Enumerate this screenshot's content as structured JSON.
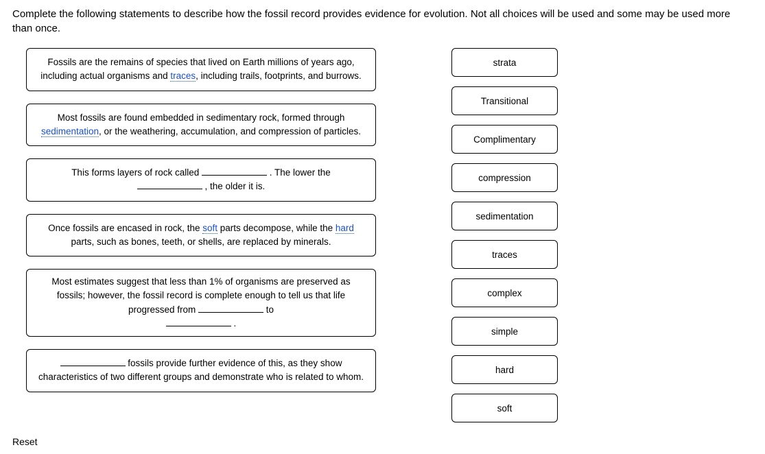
{
  "instructions": "Complete the following statements to describe how the fossil record provides evidence for evolution. Not all choices will be used and some may be used more than once.",
  "statements": {
    "s1": {
      "t1": "Fossils are the remains of species that lived on Earth millions of years ago, including actual organisms and ",
      "link1": "traces",
      "t2": ", including trails, footprints, and burrows."
    },
    "s2": {
      "t1": "Most fossils are found embedded in sedimentary rock, formed through ",
      "link1": "sedimentation",
      "t2": ", or the weathering, accumulation, and compression of particles."
    },
    "s3": {
      "t1": "This forms layers of rock called ",
      "t2": " . The lower the ",
      "t3": " , the older it is."
    },
    "s4": {
      "t1": "Once fossils are encased in rock, the ",
      "link1": "soft",
      "t2": " parts decompose, while the ",
      "link2": "hard",
      "t3": " parts, such as bones, teeth, or shells, are replaced by minerals."
    },
    "s5": {
      "t1": "Most estimates suggest that less than 1% of organisms are preserved as fossils; however, the fossil record is complete enough to tell us that life progressed from ",
      "t2": " to ",
      "t3": " ."
    },
    "s6": {
      "t1": " fossils provide further evidence of this, as they show characteristics of two different groups and demonstrate who is related to whom."
    }
  },
  "choices": {
    "c1": "strata",
    "c2": "Transitional",
    "c3": "Complimentary",
    "c4": "compression",
    "c5": "sedimentation",
    "c6": "traces",
    "c7": "complex",
    "c8": "simple",
    "c9": "hard",
    "c10": "soft"
  },
  "reset_label": "Reset",
  "colors": {
    "link": "#1a4fd8",
    "border": "#000000",
    "bg": "#ffffff",
    "text": "#000000"
  }
}
